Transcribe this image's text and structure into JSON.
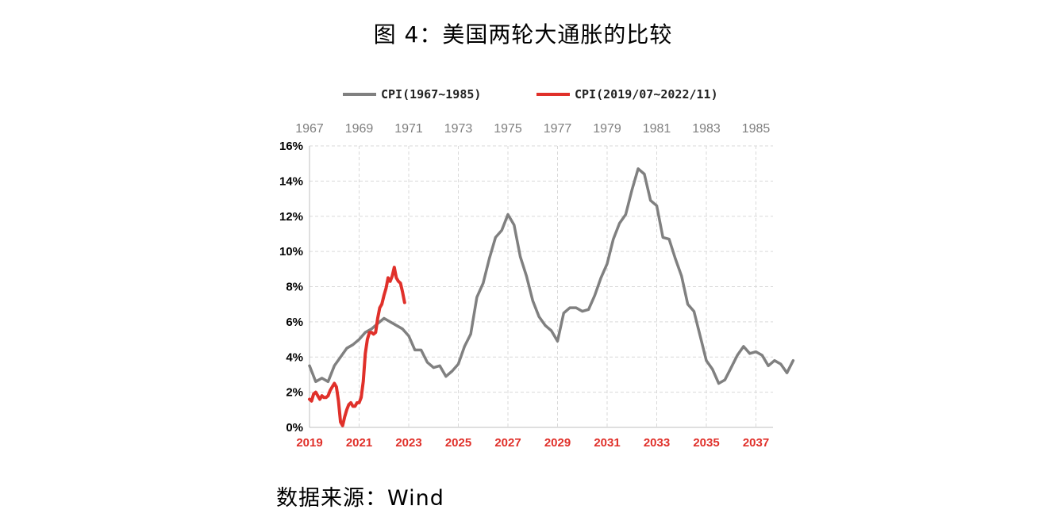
{
  "figure": {
    "title": "图 4：美国两轮大通胀的比较",
    "source": "数据来源：Wind"
  },
  "chart_data": {
    "type": "line",
    "legend_position": "top",
    "grid": true,
    "y_ticks": [
      "0%",
      "2%",
      "4%",
      "6%",
      "8%",
      "10%",
      "12%",
      "14%",
      "16%"
    ],
    "ylim": [
      0,
      16
    ],
    "x_top_ticks": [
      "1967",
      "1969",
      "1971",
      "1973",
      "1975",
      "1977",
      "1979",
      "1981",
      "1983",
      "1985"
    ],
    "x_bottom_ticks": [
      "2019",
      "2021",
      "2023",
      "2025",
      "2027",
      "2029",
      "2031",
      "2033",
      "2035",
      "2037"
    ],
    "series": [
      {
        "name": "CPI(1967~1985)",
        "color": "#808080",
        "axis": "top",
        "x_start": "1967-01",
        "x_step_months": 3,
        "values": [
          3.5,
          2.6,
          2.8,
          2.6,
          3.5,
          4.0,
          4.5,
          4.7,
          5.0,
          5.4,
          5.6,
          5.9,
          6.2,
          6.0,
          5.8,
          5.6,
          5.2,
          4.4,
          4.4,
          3.7,
          3.4,
          3.5,
          2.9,
          3.2,
          3.6,
          4.6,
          5.3,
          7.4,
          8.2,
          9.6,
          10.8,
          11.2,
          12.1,
          11.5,
          9.7,
          8.6,
          7.2,
          6.3,
          5.8,
          5.5,
          4.9,
          6.5,
          6.8,
          6.8,
          6.6,
          6.7,
          7.5,
          8.5,
          9.3,
          10.7,
          11.6,
          12.1,
          13.5,
          14.7,
          14.4,
          12.9,
          12.6,
          10.8,
          10.7,
          9.6,
          8.6,
          7.0,
          6.6,
          5.2,
          3.8,
          3.3,
          2.5,
          2.7,
          3.4,
          4.1,
          4.6,
          4.2,
          4.3,
          4.1,
          3.5,
          3.8,
          3.6,
          3.1,
          3.8
        ]
      },
      {
        "name": "CPI(2019/07~2022/11)",
        "color": "#e0302a",
        "axis": "bottom",
        "x_start": "2019-01",
        "x_step_months": 1,
        "values": [
          1.6,
          1.5,
          1.9,
          2.0,
          1.8,
          1.6,
          1.8,
          1.7,
          1.7,
          1.8,
          2.1,
          2.3,
          2.5,
          2.3,
          1.5,
          0.3,
          0.1,
          0.6,
          1.0,
          1.3,
          1.4,
          1.2,
          1.2,
          1.4,
          1.4,
          1.7,
          2.6,
          4.2,
          5.0,
          5.4,
          5.4,
          5.3,
          5.4,
          6.2,
          6.8,
          7.0,
          7.5,
          7.9,
          8.5,
          8.3,
          8.6,
          9.1,
          8.5,
          8.3,
          8.2,
          7.7,
          7.1
        ]
      }
    ]
  }
}
